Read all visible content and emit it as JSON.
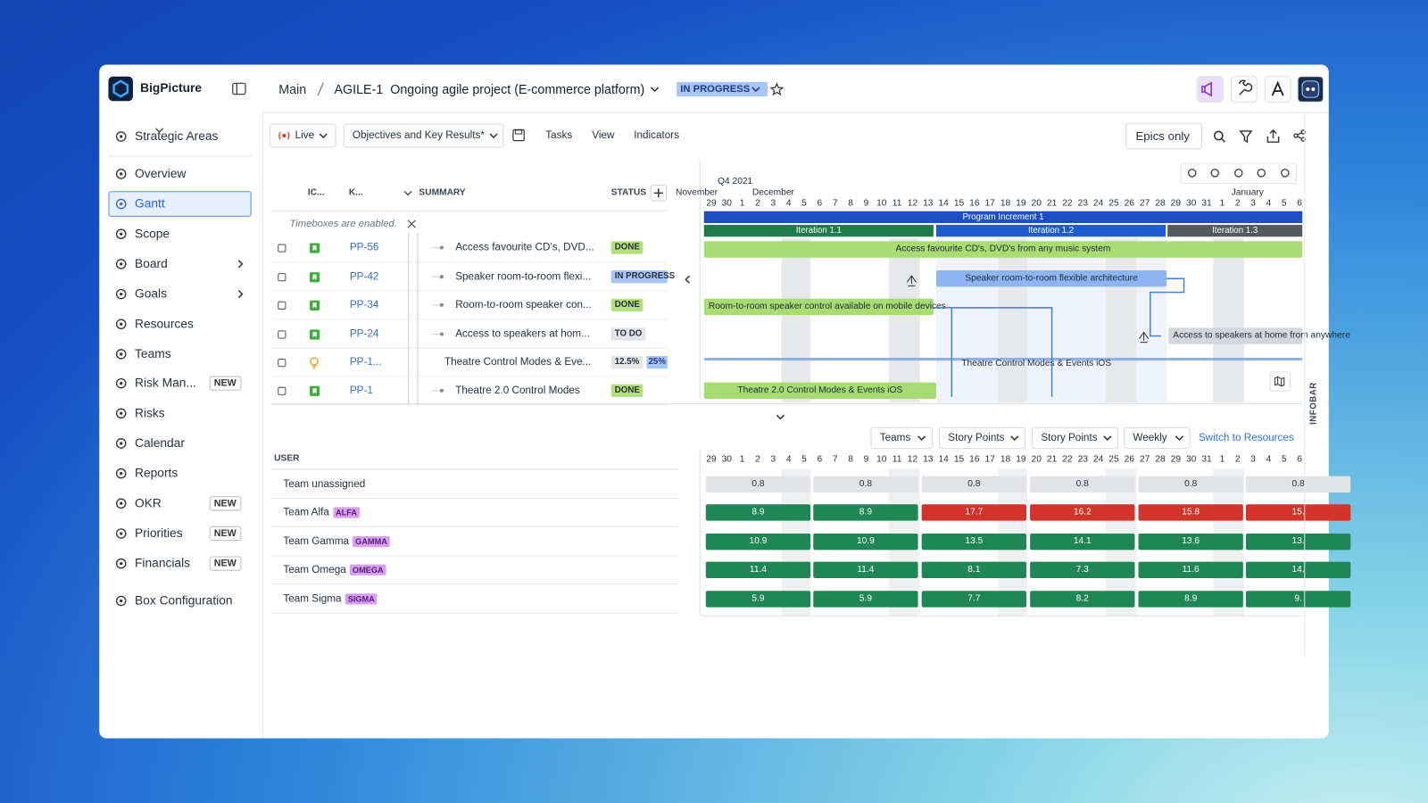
{
  "app": {
    "name": "BigPicture"
  },
  "sidebar": [
    {
      "label": "Strategic Areas"
    },
    {
      "label": "Overview"
    },
    {
      "label": "Gantt",
      "active": true
    },
    {
      "label": "Scope"
    },
    {
      "label": "Board",
      "submenu": true
    },
    {
      "label": "Goals",
      "submenu": true
    },
    {
      "label": "Resources"
    },
    {
      "label": "Teams"
    },
    {
      "label": "Risk Man...",
      "badge": "NEW"
    },
    {
      "label": "Risks"
    },
    {
      "label": "Calendar"
    },
    {
      "label": "Reports"
    },
    {
      "label": "OKR",
      "badge": "NEW"
    },
    {
      "label": "Priorities",
      "badge": "NEW"
    },
    {
      "label": "Financials",
      "badge": "NEW"
    },
    {
      "label": "Box Configuration"
    }
  ],
  "header": {
    "breadcrumb": "Main",
    "project": "AGILE-1  Ongoing agile project (E-commerce platform)",
    "status": "IN PROGRESS"
  },
  "toolbar": {
    "mode": "Live",
    "view": "Objectives and Key Results*",
    "tabs": [
      "Tasks",
      "View",
      "Indicators"
    ],
    "filter": "Epics only"
  },
  "tasks": {
    "columns": [
      "IC...",
      "K...",
      "SUMMARY",
      "STATUS"
    ],
    "notice": "Timeboxes are enabled.",
    "rows": [
      {
        "key": "PP-56",
        "summary": "Access favourite CD's, DVD...",
        "status": "DONE",
        "statusColor": "#b4e07a"
      },
      {
        "key": "PP-42",
        "summary": "Speaker room-to-room flexi...",
        "status": "IN PROGRESS",
        "statusColor": "#a9c5f5"
      },
      {
        "key": "PP-34",
        "summary": "Room-to-room speaker con...",
        "status": "DONE",
        "statusColor": "#b4e07a"
      },
      {
        "key": "PP-24",
        "summary": "Access to speakers at hom...",
        "status": "TO DO",
        "statusColor": "#e2e4e8"
      },
      {
        "key": "PP-1...",
        "summary": "Theatre Control Modes & Eve...",
        "status": "12.5%",
        "statusColor": "#e2e4e8",
        "progress": "25%",
        "progressColor": "#a9c5f5"
      },
      {
        "key": "PP-1",
        "summary": "Theatre 2.0 Control Modes",
        "status": "DONE",
        "statusColor": "#b4e07a"
      }
    ]
  },
  "gantt": {
    "quarter": "Q4 2021",
    "months": [
      "November",
      "December",
      "January"
    ],
    "days": [
      29,
      30,
      1,
      2,
      3,
      4,
      5,
      6,
      7,
      8,
      9,
      10,
      11,
      12,
      13,
      14,
      15,
      16,
      17,
      18,
      19,
      20,
      21,
      22,
      23,
      24,
      25,
      26,
      27,
      28,
      29,
      30,
      31,
      1,
      2,
      3,
      4,
      5,
      6
    ],
    "timeboxes": [
      {
        "label": "Program Increment 1",
        "color": "#1e4fc2"
      },
      {
        "label": "Iteration 1.1",
        "color": "#1f7a4d"
      },
      {
        "label": "Iteration 1.2",
        "color": "#1e5ad0"
      },
      {
        "label": "Iteration 1.3",
        "color": "#55595f"
      }
    ],
    "bars": [
      {
        "label": "Access favourite CD's, DVD's from any music system",
        "color": "#a6dc72"
      },
      {
        "label": "Speaker room-to-room flexible architecture",
        "color": "#8fb4f2"
      },
      {
        "label": "Room-to-room speaker control available on mobile devices",
        "color": "#a6dc72"
      },
      {
        "label": "Access to speakers at home from anywhere",
        "color": "#d3d6db"
      },
      {
        "label": "Theatre Control Modes & Events iOS",
        "color": "#8fb0e8"
      },
      {
        "label": "Theatre 2.0 Control Modes & Events iOS",
        "color": "#a6dc72"
      }
    ]
  },
  "teams": {
    "controls": [
      "Teams",
      "Story Points",
      "Story Points",
      "Weekly"
    ],
    "link": "Switch to Resources",
    "column": "USER",
    "rows": [
      {
        "name": "Team unassigned",
        "cells": [
          {
            "text": "0.8",
            "color": "#e1e3e6"
          },
          {
            "text": "0.8",
            "color": "#e1e3e6"
          },
          {
            "text": "0.8",
            "color": "#e1e3e6"
          },
          {
            "text": "0.8",
            "color": "#e1e3e6"
          },
          {
            "text": "0.8",
            "color": "#e1e3e6"
          },
          {
            "text": "0.8",
            "color": "#e1e3e6"
          }
        ]
      },
      {
        "name": "Team Alfa",
        "tag": "ALFA",
        "cells": [
          {
            "text": "8.9",
            "color": "#1f8656"
          },
          {
            "text": "8.9",
            "color": "#1f8656"
          },
          {
            "text": "17.7",
            "color": "#d2342c"
          },
          {
            "text": "16.2",
            "color": "#d2342c"
          },
          {
            "text": "15.8",
            "color": "#d2342c"
          },
          {
            "text": "15.",
            "color": "#d2342c"
          }
        ]
      },
      {
        "name": "Team Gamma",
        "tag": "GAMMA",
        "cells": [
          {
            "text": "10.9",
            "color": "#1f8656"
          },
          {
            "text": "10.9",
            "color": "#1f8656"
          },
          {
            "text": "13.5",
            "color": "#1f8656"
          },
          {
            "text": "14.1",
            "color": "#1f8656"
          },
          {
            "text": "13.6",
            "color": "#1f8656"
          },
          {
            "text": "13.",
            "color": "#1f8656"
          }
        ]
      },
      {
        "name": "Team Omega",
        "tag": "OMEGA",
        "cells": [
          {
            "text": "11.4",
            "color": "#1f8656"
          },
          {
            "text": "11.4",
            "color": "#1f8656"
          },
          {
            "text": "8.1",
            "color": "#1f8656"
          },
          {
            "text": "7.3",
            "color": "#1f8656"
          },
          {
            "text": "11.6",
            "color": "#1f8656"
          },
          {
            "text": "14.",
            "color": "#1f8656"
          }
        ]
      },
      {
        "name": "Team Sigma",
        "tag": "SIGMA",
        "cells": [
          {
            "text": "5.9",
            "color": "#1f8656"
          },
          {
            "text": "5.9",
            "color": "#1f8656"
          },
          {
            "text": "7.7",
            "color": "#1f8656"
          },
          {
            "text": "8.2",
            "color": "#1f8656"
          },
          {
            "text": "8.9",
            "color": "#1f8656"
          },
          {
            "text": "9.",
            "color": "#1f8656"
          }
        ]
      }
    ]
  },
  "infobar": "INFOBAR"
}
